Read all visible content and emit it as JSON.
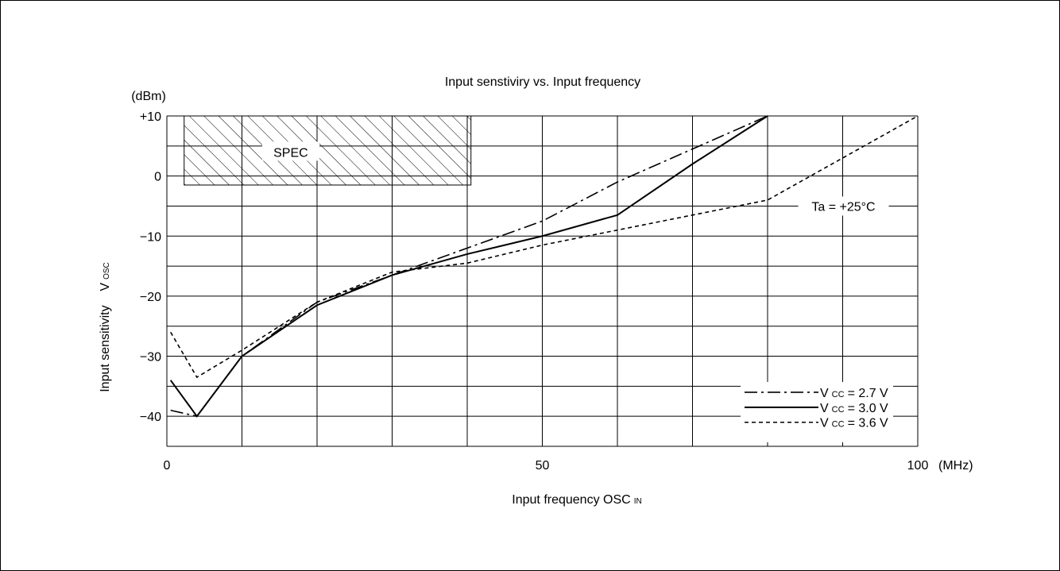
{
  "chart_data": {
    "type": "line",
    "title": "Input senstiviry vs. Input frequency",
    "xlabel": "Input frequency OSC",
    "xlabel_sub": "IN",
    "ylabel": "Input sensitivity    V",
    "ylabel_sub": "OSC",
    "yunit": "(dBm)",
    "xunit": "(MHz)",
    "xlim": [
      0,
      100
    ],
    "ylim": [
      -45,
      10
    ],
    "grid": true,
    "x_ticks": [
      {
        "value": 0,
        "label": "0"
      },
      {
        "value": 50,
        "label": "50"
      },
      {
        "value": 100,
        "label": "100"
      }
    ],
    "y_ticks": [
      {
        "value": 10,
        "label": "+10"
      },
      {
        "value": 0,
        "label": "0"
      },
      {
        "value": -10,
        "label": "−10"
      },
      {
        "value": -20,
        "label": "−20"
      },
      {
        "value": -30,
        "label": "−30"
      },
      {
        "value": -40,
        "label": "−40"
      }
    ],
    "spec_region": {
      "label": "SPEC",
      "x": [
        2.3,
        40.5
      ],
      "y": [
        -1.5,
        10
      ]
    },
    "annotation": "Ta = +25°C",
    "legend_position": "bottom-right",
    "series": [
      {
        "name": "2.7 V",
        "legend_prefix": "V",
        "legend_sub": "CC",
        "legend_eq": "= 2.7 V",
        "style": "dashdot",
        "x": [
          0.5,
          4,
          10,
          20,
          30,
          40,
          50,
          60,
          70,
          80
        ],
        "y": [
          -39,
          -40,
          -30,
          -21,
          -16.5,
          -12,
          -7.5,
          -1,
          4.5,
          10
        ]
      },
      {
        "name": "3.0 V",
        "legend_prefix": "V",
        "legend_sub": "CC",
        "legend_eq": "= 3.0 V",
        "style": "solid",
        "x": [
          0.5,
          4,
          10,
          20,
          30,
          40,
          50,
          60,
          70,
          80
        ],
        "y": [
          -34,
          -40,
          -30,
          -21.5,
          -16.5,
          -13,
          -10,
          -6.5,
          2,
          10
        ]
      },
      {
        "name": "3.6 V",
        "legend_prefix": "V",
        "legend_sub": "CC",
        "legend_eq": "= 3.6 V",
        "style": "dashed",
        "x": [
          0.5,
          4,
          10,
          20,
          30,
          40,
          50,
          60,
          70,
          80,
          90,
          100
        ],
        "y": [
          -26,
          -33.5,
          -29,
          -21,
          -16,
          -14.5,
          -11.5,
          -9,
          -6.5,
          -4,
          3,
          10
        ]
      }
    ]
  }
}
